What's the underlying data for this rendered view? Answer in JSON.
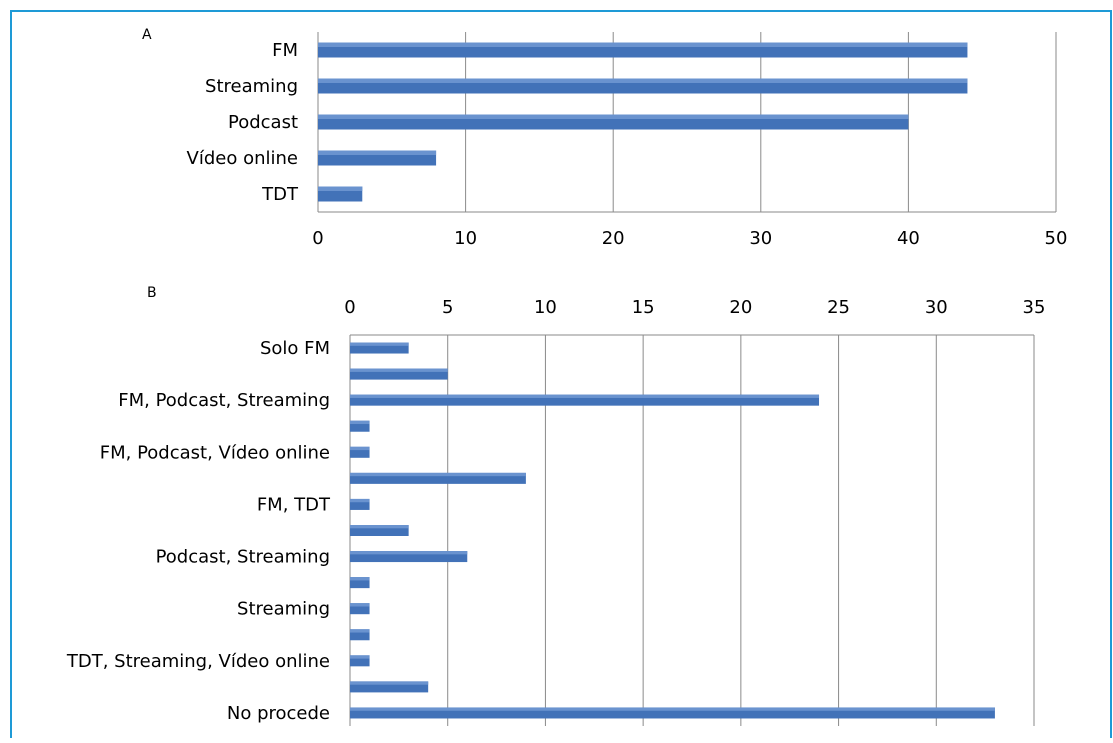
{
  "chart_data": [
    {
      "type": "bar",
      "orientation": "horizontal",
      "panel_label": "A",
      "categories": [
        "FM",
        "Streaming",
        "Podcast",
        "Vídeo online",
        "TDT"
      ],
      "values": [
        44,
        44,
        40,
        8,
        3
      ],
      "xlim": [
        0,
        50
      ],
      "xticks": [
        0,
        10,
        20,
        30,
        40,
        50
      ],
      "grid": true,
      "axis_position": "bottom",
      "bar_color": "#4272b8"
    },
    {
      "type": "bar",
      "orientation": "horizontal",
      "panel_label": "B",
      "categories": [
        "Solo FM",
        "",
        "FM, Podcast, Streaming",
        "",
        "FM, Podcast, Vídeo online",
        "",
        "FM, TDT",
        "",
        "Podcast, Streaming",
        "",
        "Streaming",
        "",
        "TDT, Streaming, Vídeo online",
        "",
        "No procede"
      ],
      "values": [
        3,
        5,
        24,
        1,
        1,
        9,
        1,
        3,
        6,
        1,
        1,
        1,
        1,
        4,
        33
      ],
      "xlim": [
        0,
        35
      ],
      "xticks": [
        0,
        5,
        10,
        15,
        20,
        25,
        30,
        35
      ],
      "grid": true,
      "axis_position": "top",
      "bar_color": "#4272b8"
    }
  ]
}
